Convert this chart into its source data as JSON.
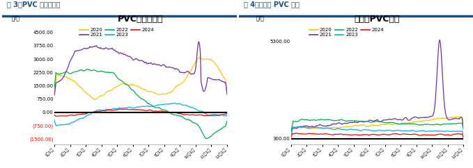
{
  "fig3_title": "PVC一体化利润",
  "fig4_title": "乙烯法PVC利润",
  "fig3_label": "图 3：PVC 一体化利润",
  "fig4_label": "图 4：乙烯法 PVC 利润",
  "ylabel": "元/吨",
  "x_ticks": [
    "1月1日",
    "2月1日",
    "3月1日",
    "4月1日",
    "5月1日",
    "6月1日",
    "7月1日",
    "8月1日",
    "9月1日",
    "10月1日",
    "11月1日",
    "12月1日"
  ],
  "fig3_yticks": [
    -1500,
    -750,
    0,
    750,
    1500,
    2250,
    3000,
    3750,
    4500
  ],
  "fig3_ytick_labels": [
    "(1500.00)",
    "(750.00)",
    "0.00",
    "750.00",
    "1500.00",
    "2250.00",
    "3000.00",
    "3750.00",
    "4500.00"
  ],
  "fig4_yticks": [
    300,
    5300
  ],
  "fig4_ytick_labels": [
    "300.00",
    "5300.00"
  ],
  "colors": {
    "2020": "#FFC000",
    "2021": "#7030A0",
    "2022": "#00B050",
    "2023": "#00B0F0",
    "2024": "#FF0000"
  },
  "header_color": "#1F4E79",
  "neg_label_color": "#FF0000"
}
